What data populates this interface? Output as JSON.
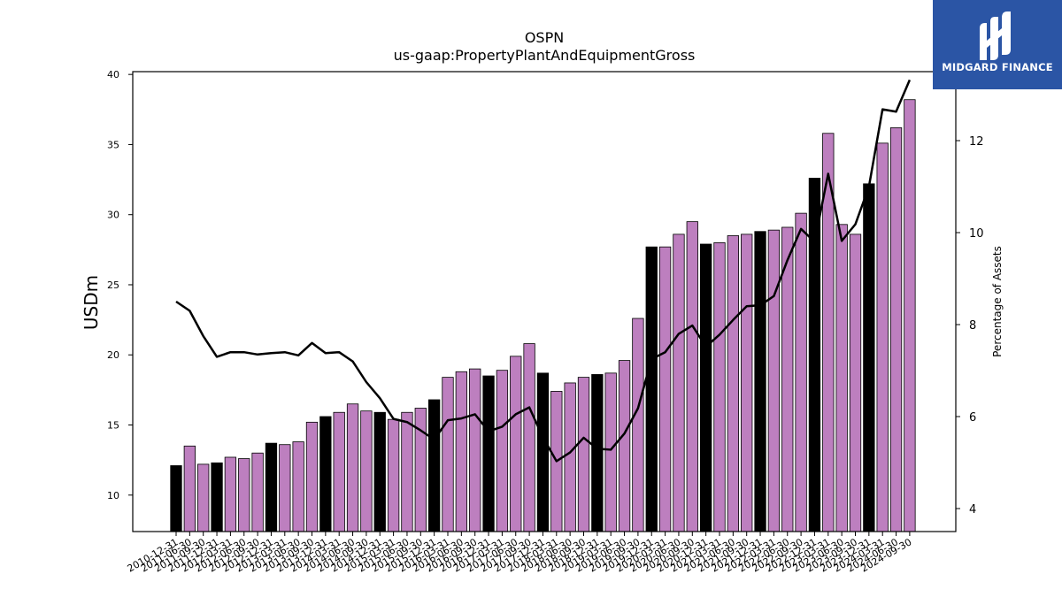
{
  "brand": {
    "name": "MIDGARD FINANCE",
    "color": "#2b55a5"
  },
  "chart_data": {
    "type": "bar",
    "title": "OSPN",
    "subtitle": "us-gaap:PropertyPlantAndEquipmentGross",
    "ylabel": "USDm",
    "y2label": "Percentage of Assets",
    "ylim": [
      7.4,
      40.2
    ],
    "y2lim": [
      3.5,
      13.5
    ],
    "yticks": [
      "10",
      "15",
      "20",
      "25",
      "30",
      "35",
      "40"
    ],
    "y2ticks": [
      "4",
      "6",
      "8",
      "10",
      "12"
    ],
    "colors": {
      "annual": "#000000",
      "quarterly": "#bd7fbf",
      "line": "#000000"
    },
    "categories": [
      "2010-12-31",
      "2011-06-30",
      "2011-09-30",
      "2011-12-31",
      "2012-03-31",
      "2012-06-30",
      "2012-09-30",
      "2012-12-31",
      "2013-03-31",
      "2013-06-30",
      "2013-09-30",
      "2013-12-31",
      "2014-03-31",
      "2014-06-30",
      "2014-09-30",
      "2014-12-31",
      "2015-03-31",
      "2015-06-30",
      "2015-09-30",
      "2015-12-31",
      "2016-03-31",
      "2016-06-30",
      "2016-09-30",
      "2016-12-31",
      "2017-03-31",
      "2017-06-30",
      "2017-09-30",
      "2017-12-31",
      "2018-03-31",
      "2018-06-30",
      "2018-09-30",
      "2018-12-31",
      "2019-03-31",
      "2019-06-30",
      "2019-09-30",
      "2019-12-31",
      "2020-03-31",
      "2020-06-30",
      "2020-09-30",
      "2020-12-31",
      "2021-03-31",
      "2021-06-30",
      "2021-09-30",
      "2021-12-31",
      "2022-03-31",
      "2022-06-30",
      "2022-09-30",
      "2022-12-31",
      "2023-03-31",
      "2023-06-30",
      "2023-09-30",
      "2023-12-31",
      "2024-03-31",
      "2024-06-30",
      "2024-09-30"
    ],
    "series": [
      {
        "kind": "bar",
        "values": [
          12.1,
          13.5,
          12.2,
          12.3,
          12.7,
          12.6,
          13.0,
          13.7,
          13.6,
          13.8,
          15.2,
          15.6,
          15.9,
          16.5,
          16.0,
          15.9,
          15.4,
          15.9,
          16.2,
          16.8,
          18.4,
          18.8,
          19.0,
          18.5,
          18.9,
          19.9,
          20.8,
          18.7,
          17.4,
          18.0,
          18.4,
          18.6,
          18.7,
          19.6,
          22.6,
          27.7,
          27.7,
          28.6,
          29.5,
          27.9,
          28.0,
          28.5,
          28.6,
          28.8,
          28.9,
          29.1,
          30.1,
          32.6,
          35.8,
          29.3,
          28.6,
          32.2,
          35.1,
          36.2,
          38.2
        ],
        "annual": [
          true,
          false,
          false,
          true,
          false,
          false,
          false,
          true,
          false,
          false,
          false,
          true,
          false,
          false,
          false,
          true,
          false,
          false,
          false,
          true,
          false,
          false,
          false,
          true,
          false,
          false,
          false,
          true,
          false,
          false,
          false,
          true,
          false,
          false,
          false,
          true,
          false,
          false,
          false,
          true,
          false,
          false,
          false,
          true,
          false,
          false,
          false,
          true,
          false,
          false,
          false,
          true,
          false,
          false,
          false
        ]
      },
      {
        "kind": "line",
        "axis": "right",
        "values": [
          8.5,
          8.3,
          7.75,
          7.3,
          7.4,
          7.4,
          7.35,
          7.38,
          7.4,
          7.33,
          7.6,
          7.38,
          7.4,
          7.2,
          6.75,
          6.4,
          5.95,
          5.88,
          5.7,
          5.5,
          5.92,
          5.96,
          6.05,
          5.68,
          5.78,
          6.05,
          6.2,
          5.55,
          5.03,
          5.22,
          5.54,
          5.3,
          5.28,
          5.63,
          6.18,
          7.25,
          7.4,
          7.8,
          7.98,
          7.52,
          7.78,
          8.1,
          8.4,
          8.42,
          8.62,
          9.4,
          10.08,
          9.8,
          11.28,
          9.82,
          10.18,
          11.0,
          12.68,
          12.63,
          13.32
        ]
      }
    ],
    "grid": false,
    "legend": "none"
  }
}
